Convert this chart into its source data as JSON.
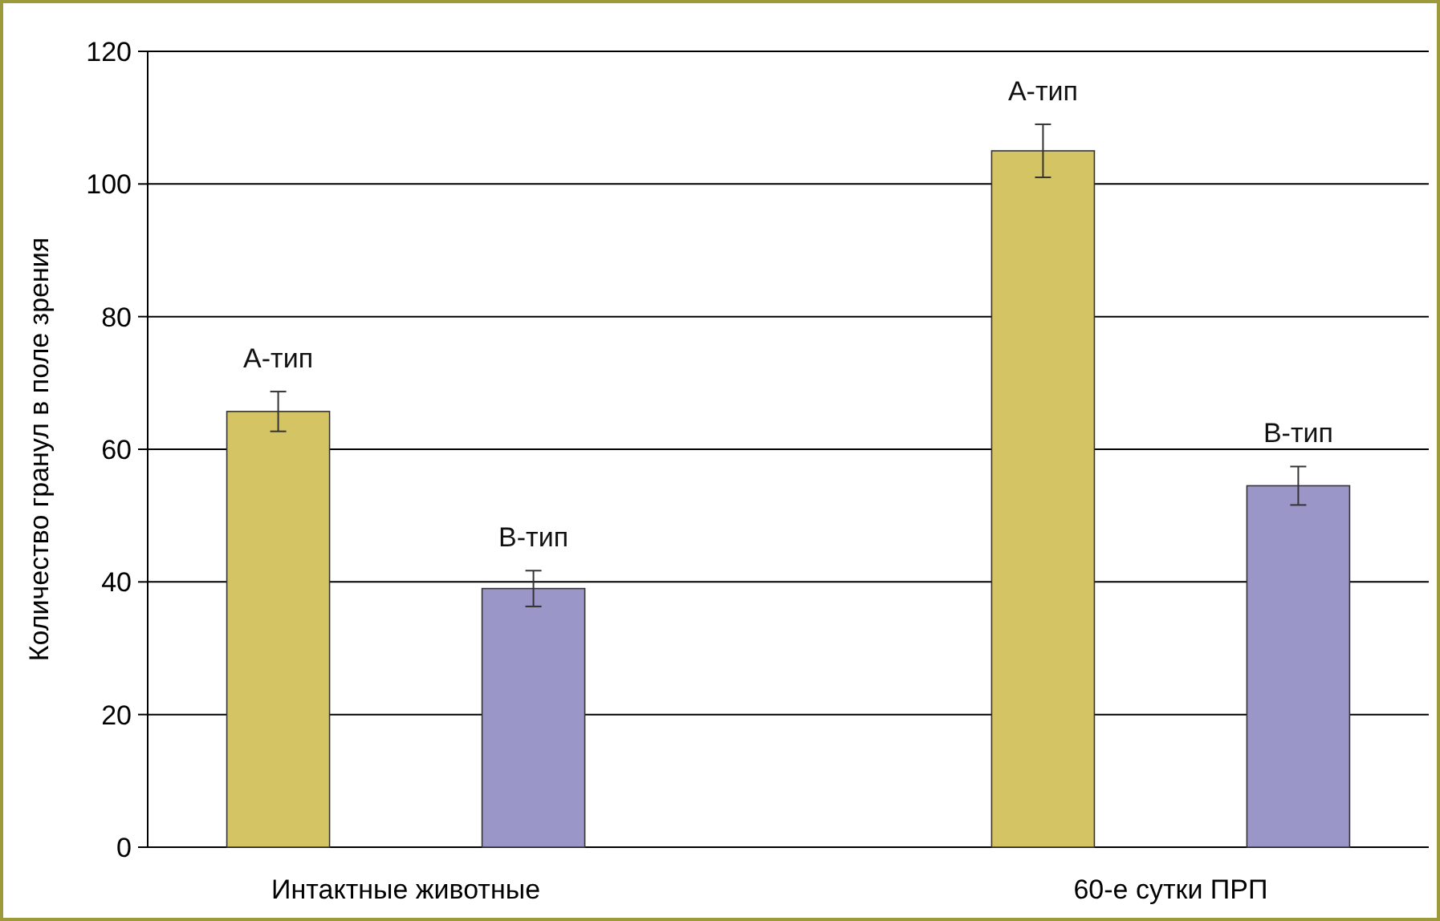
{
  "chart_data": {
    "type": "bar",
    "ylabel": "Количество гранул в поле зрения",
    "categories": [
      "Интактные животные",
      "60-е  сутки ПРП"
    ],
    "series": [
      {
        "name": "А-тип",
        "color": "#d4c464",
        "values": [
          65.7,
          105
        ],
        "errors": [
          3,
          4
        ]
      },
      {
        "name": "В-тип",
        "color": "#9b96c8",
        "values": [
          39,
          54.5
        ],
        "errors": [
          2.7,
          2.9
        ]
      }
    ],
    "ylim": [
      0,
      120
    ],
    "yticks": [
      0,
      20,
      40,
      60,
      80,
      100,
      120
    ],
    "grid": "y"
  }
}
